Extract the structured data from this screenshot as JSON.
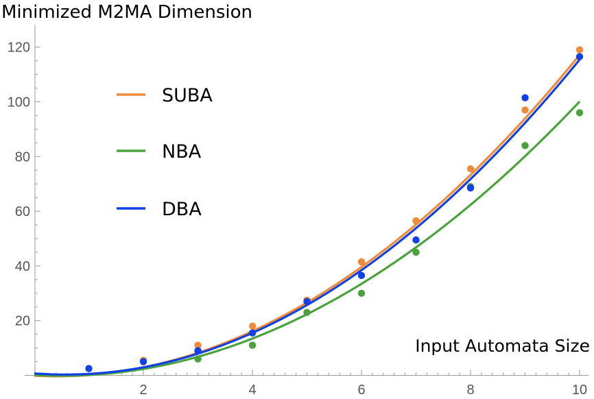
{
  "chart_data": {
    "type": "scatter",
    "title": "Minimized M2MA Dimension",
    "xlabel": "Input Automata Size",
    "ylabel": "",
    "xlim": [
      0,
      10
    ],
    "ylim": [
      -1,
      125
    ],
    "xticks": [
      2,
      4,
      6,
      8,
      10
    ],
    "yticks": [
      20,
      40,
      60,
      80,
      100,
      120
    ],
    "grid": false,
    "legend_position": "top-left",
    "series": [
      {
        "name": "SUBA",
        "color": "#ee8a3a",
        "x": [
          2,
          3,
          4,
          5,
          6,
          7,
          8,
          9,
          10
        ],
        "y": [
          5.5,
          11,
          18,
          27.5,
          41.5,
          56.5,
          75.5,
          97,
          119
        ],
        "fit": [
          1.276,
          -1.03,
          -0.14
        ]
      },
      {
        "name": "NBA",
        "color": "#4aa23c",
        "x": [
          3,
          4,
          5,
          6,
          7,
          8,
          9,
          10
        ],
        "y": [
          6,
          11,
          23,
          30,
          45,
          69,
          84,
          96
        ],
        "fit": [
          1.11,
          -1.1,
          0.1
        ]
      },
      {
        "name": "DBA",
        "color": "#1140e8",
        "x": [
          1,
          2,
          3,
          4,
          5,
          6,
          7,
          8,
          9,
          10
        ],
        "y": [
          2.5,
          5,
          9,
          15.5,
          27,
          36.5,
          49.5,
          68.5,
          101.5,
          116.5
        ],
        "fit": [
          1.295,
          -1.48,
          0.72
        ]
      }
    ]
  }
}
